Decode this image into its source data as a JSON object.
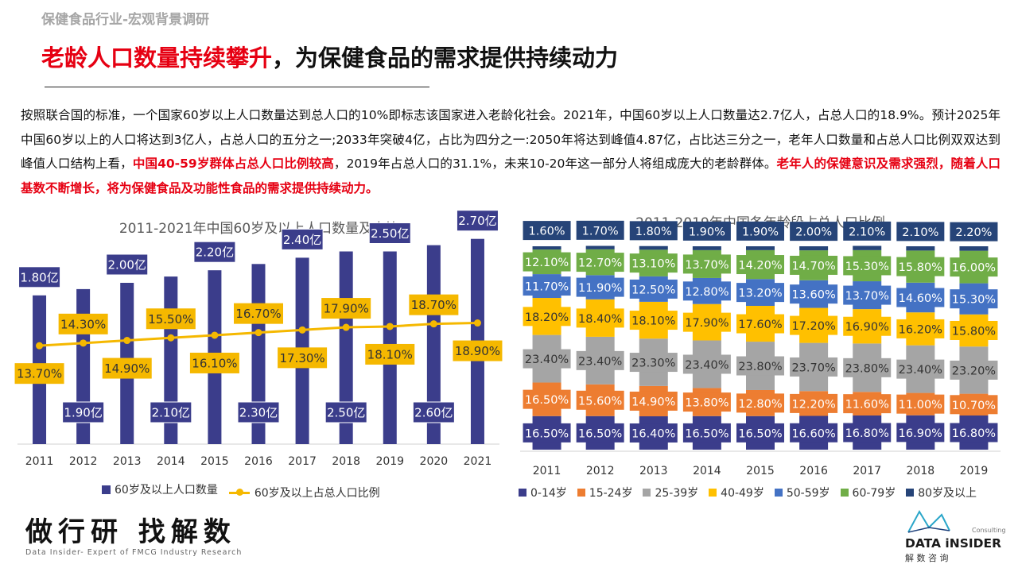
{
  "page": {
    "section_title": "保健食品行业-宏观背景调研",
    "headline_red": "老龄人口数量持续攀升",
    "headline_black": "，为保健食品的需求提供持续动力",
    "intro": {
      "p1": "按照联合国的标准，一个国家60岁以上人口数量达到总人口的10%即标志该国家进入老龄化社会。2021年，中国60岁以上人口数量达2.7亿人，占总人口的18.9%。预计2025年中国60岁以上的人口将达到3亿人，占总人口的五分之一;2033年突破4亿，占比为四分之一:2050年将达到峰值4.87亿，占比达三分之一，老年人口数量和占总人口比例双双达到峰值人口结构上看，",
      "hl1": "中国40-59岁群体占总人口比例较高",
      "p2": "，2019年占总人口的31.1%，未来10-20年这一部分人将组成庞大的老龄群体。",
      "hl2": "老年人的保健意识及需求强烈，随着人口基数不断增长，将为保健食品及功能性食品的需求提供持续动力。"
    },
    "brand": {
      "slogan": "做行研 找解数",
      "subtitle": "Data Insider- Expert of FMCG Industry Research",
      "logo_small": "Consulting",
      "logo_main": "DATA iNSIDER",
      "logo_cn": "解 数 咨 询"
    }
  },
  "chart_data": [
    {
      "type": "bar",
      "title": "2011-2021年中国60岁及以上人口数量及占比",
      "categories": [
        "2011",
        "2012",
        "2013",
        "2014",
        "2015",
        "2016",
        "2017",
        "2018",
        "2019",
        "2020",
        "2021"
      ],
      "series": [
        {
          "name": "60岁及以上人口数量",
          "type": "bar",
          "color": "#3b3d8b",
          "values": [
            1.8,
            1.9,
            2.0,
            2.1,
            2.2,
            2.3,
            2.4,
            2.5,
            2.5,
            2.6,
            2.7
          ],
          "labels": [
            "1.80亿",
            "1.90亿",
            "2.00亿",
            "2.10亿",
            "2.20亿",
            "2.30亿",
            "2.40亿",
            "2.50亿",
            "2.50亿",
            "2.60亿",
            "2.70亿"
          ]
        },
        {
          "name": "60岁及以上占总人口比例",
          "type": "line",
          "color": "#f5b800",
          "values": [
            13.7,
            14.3,
            14.9,
            15.5,
            16.1,
            16.7,
            17.3,
            17.9,
            18.1,
            18.7,
            18.9
          ],
          "labels": [
            "13.70%",
            "14.30%",
            "14.90%",
            "15.50%",
            "16.10%",
            "16.70%",
            "17.30%",
            "17.90%",
            "18.10%",
            "18.70%",
            "18.90%"
          ]
        }
      ],
      "legend_position": "bottom"
    },
    {
      "type": "bar",
      "stacked": true,
      "title": "2011-2019年中国各年龄段占总人口比例",
      "categories": [
        "2011",
        "2012",
        "2013",
        "2014",
        "2015",
        "2016",
        "2017",
        "2018",
        "2019"
      ],
      "series": [
        {
          "name": "0-14岁",
          "color": "#3b3d8b",
          "values": [
            16.5,
            16.5,
            16.4,
            16.5,
            16.5,
            16.6,
            16.8,
            16.9,
            16.8
          ],
          "labels": [
            "16.50%",
            "16.50%",
            "16.40%",
            "16.50%",
            "16.50%",
            "16.60%",
            "16.80%",
            "16.90%",
            "16.80%"
          ]
        },
        {
          "name": "15-24岁",
          "color": "#ed7d31",
          "values": [
            16.5,
            15.6,
            14.9,
            13.8,
            12.8,
            12.2,
            11.6,
            11.0,
            10.7
          ],
          "labels": [
            "16.50%",
            "15.60%",
            "14.90%",
            "13.80%",
            "12.80%",
            "12.20%",
            "11.60%",
            "11.00%",
            "10.70%"
          ]
        },
        {
          "name": "25-39岁",
          "color": "#a5a5a5",
          "values": [
            23.4,
            23.4,
            23.3,
            23.4,
            23.8,
            23.7,
            23.8,
            23.4,
            23.2
          ],
          "labels": [
            "23.40%",
            "23.40%",
            "23.30%",
            "23.40%",
            "23.80%",
            "23.70%",
            "23.80%",
            "23.40%",
            "23.20%"
          ]
        },
        {
          "name": "40-49岁",
          "color": "#ffc000",
          "values": [
            18.2,
            18.4,
            18.1,
            17.9,
            17.6,
            17.2,
            16.9,
            16.2,
            15.8
          ],
          "labels": [
            "18.20%",
            "18.40%",
            "18.10%",
            "17.90%",
            "17.60%",
            "17.20%",
            "16.90%",
            "16.20%",
            "15.80%"
          ]
        },
        {
          "name": "50-59岁",
          "color": "#4472c4",
          "values": [
            11.7,
            11.9,
            12.5,
            12.8,
            13.2,
            13.6,
            13.7,
            14.6,
            15.3
          ],
          "labels": [
            "11.70%",
            "11.90%",
            "12.50%",
            "12.80%",
            "13.20%",
            "13.60%",
            "13.70%",
            "14.60%",
            "15.30%"
          ]
        },
        {
          "name": "60-79岁",
          "color": "#70ad47",
          "values": [
            12.1,
            12.7,
            13.1,
            13.7,
            14.2,
            14.7,
            15.3,
            15.8,
            16.0
          ],
          "labels": [
            "12.10%",
            "12.70%",
            "13.10%",
            "13.70%",
            "14.20%",
            "14.70%",
            "15.30%",
            "15.80%",
            "16.00%"
          ]
        },
        {
          "name": "80岁及以上",
          "color": "#264478",
          "values": [
            1.6,
            1.7,
            1.8,
            1.9,
            1.9,
            2.0,
            2.1,
            2.1,
            2.2
          ],
          "labels": [
            "1.60%",
            "1.70%",
            "1.80%",
            "1.90%",
            "1.90%",
            "2.00%",
            "2.10%",
            "2.10%",
            "2.20%"
          ]
        }
      ],
      "legend_position": "bottom"
    }
  ]
}
